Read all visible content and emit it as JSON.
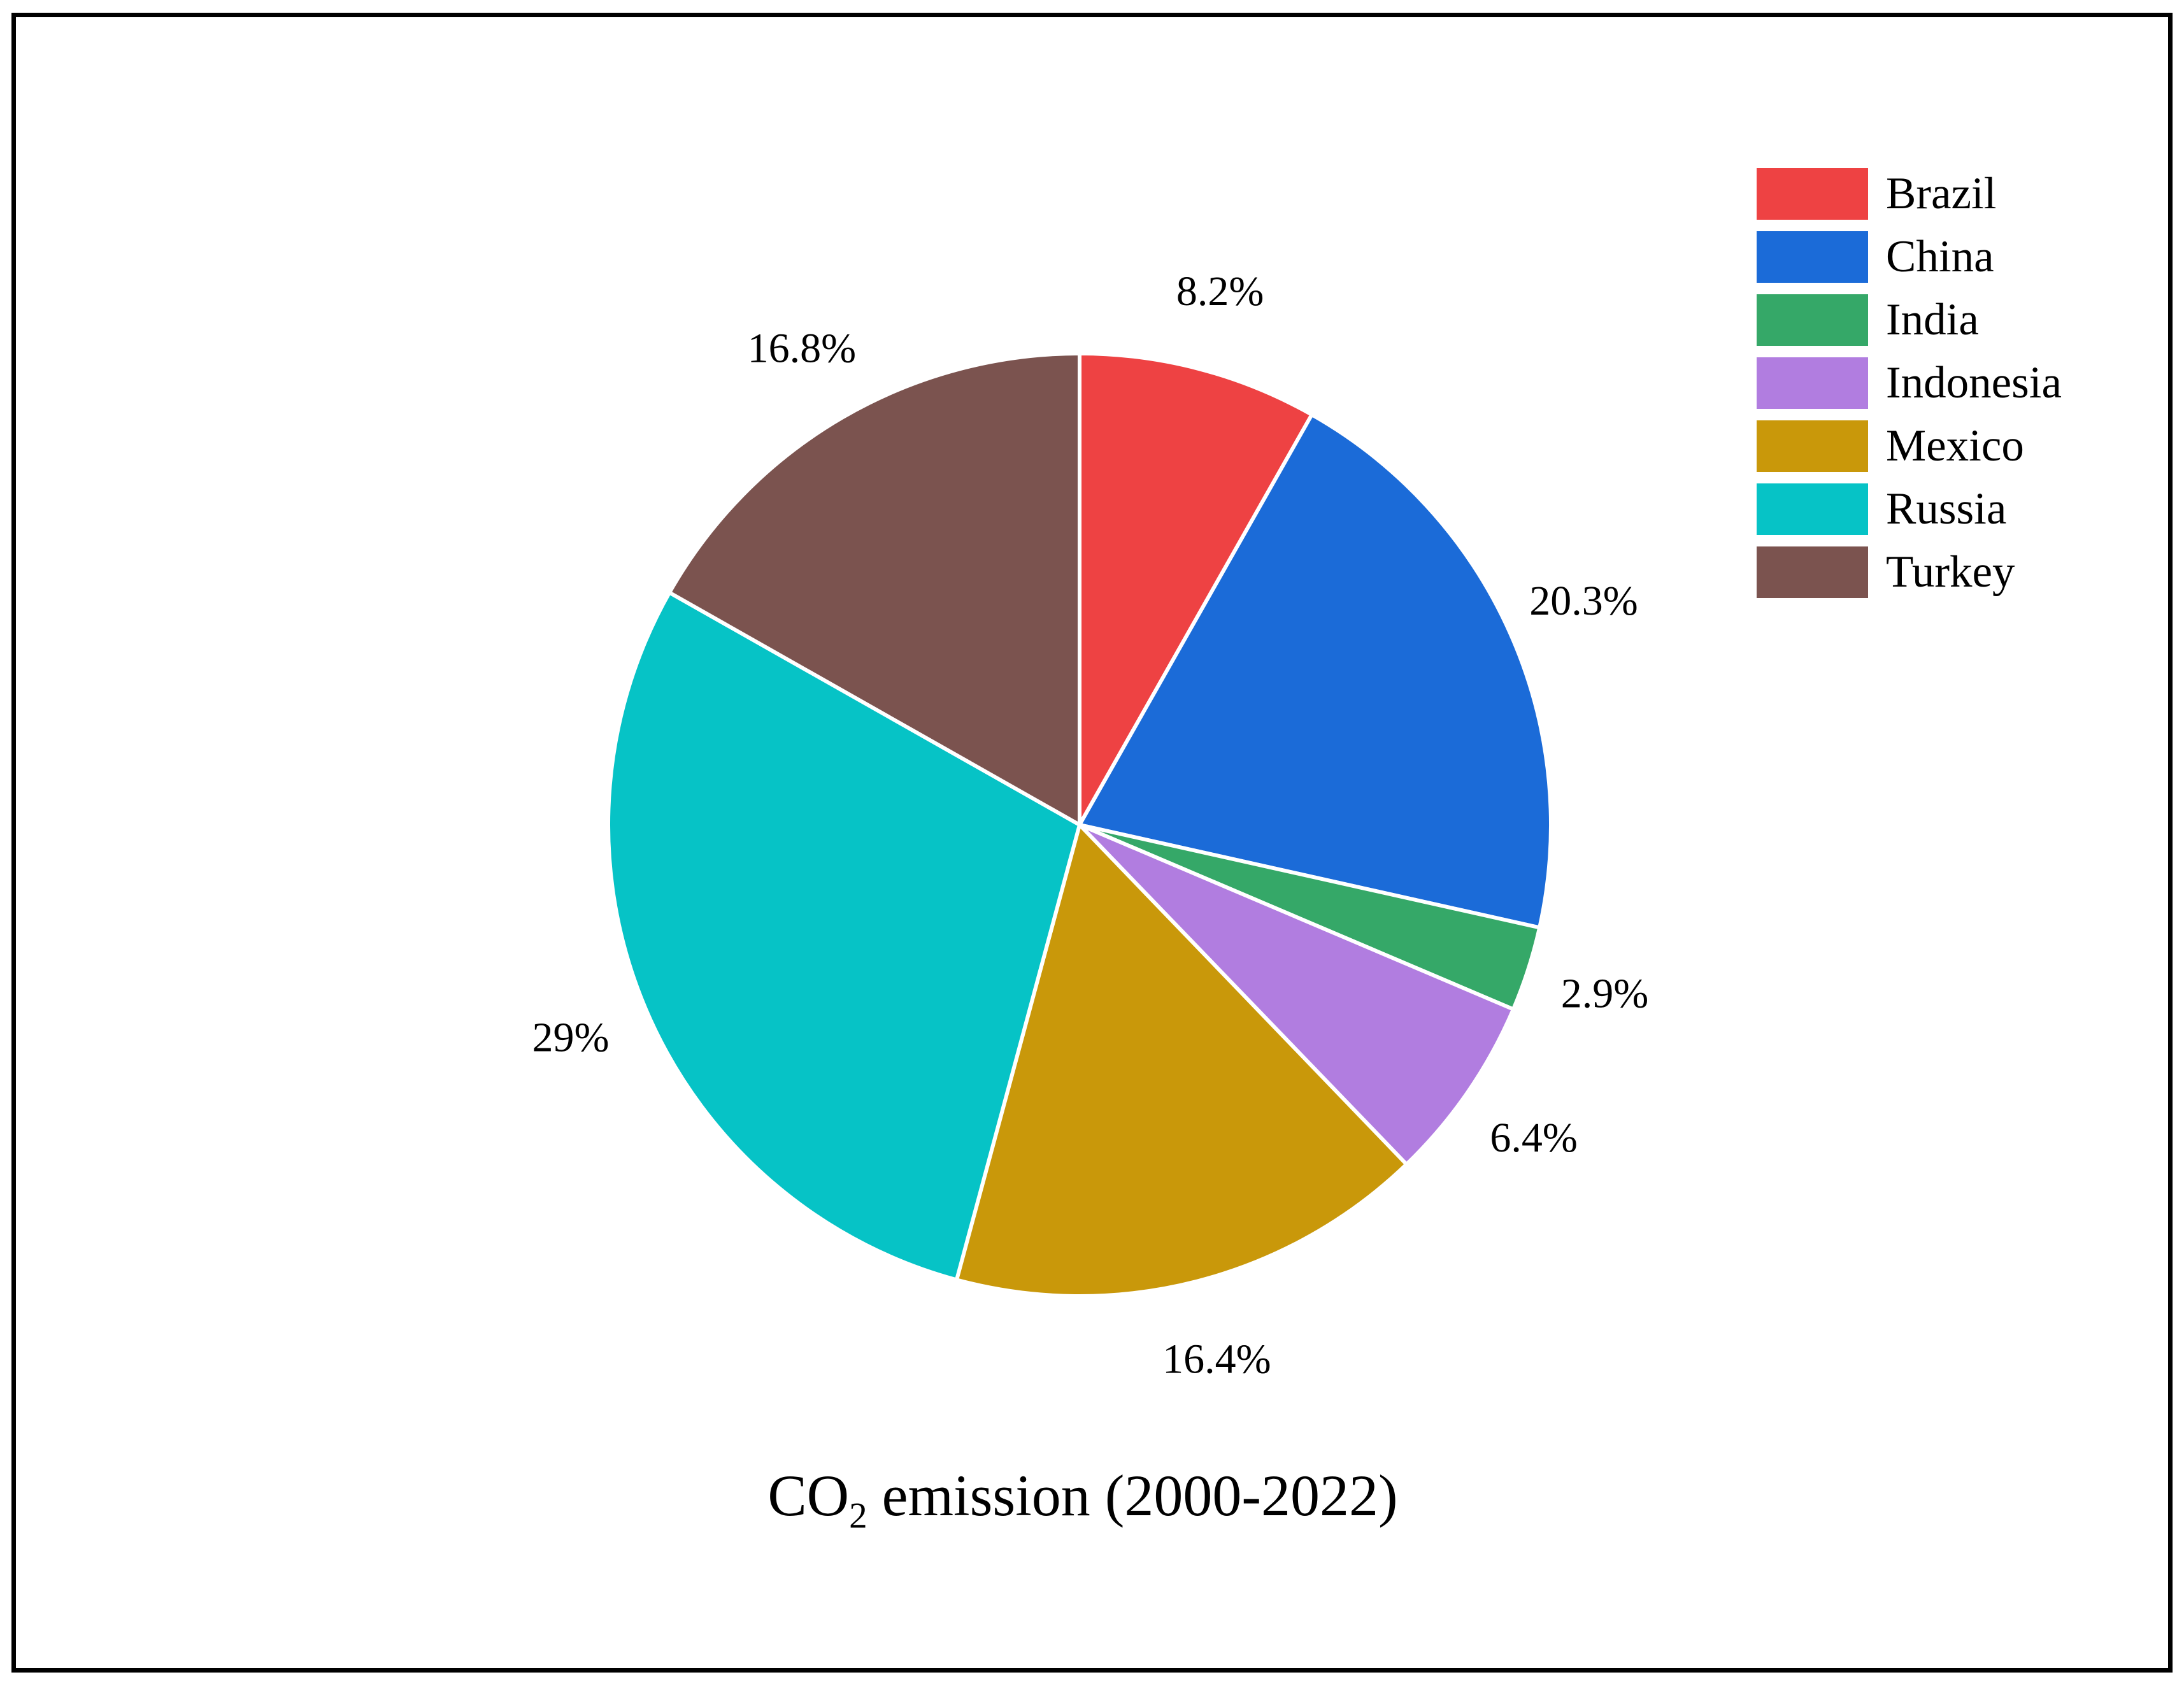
{
  "figure": {
    "background_color": "#ffffff",
    "frame_border_color": "#000000"
  },
  "chart_data": {
    "type": "pie",
    "title": "CO2 emission (2000-2022)",
    "title_prefix": "CO",
    "title_sub": "2",
    "title_suffix": " emission (2000-2022)",
    "categories": [
      "Brazil",
      "China",
      "India",
      "Indonesia",
      "Mexico",
      "Russia",
      "Turkey"
    ],
    "values": [
      8.2,
      20.3,
      2.9,
      6.4,
      16.4,
      29,
      16.8
    ],
    "slice_labels": [
      "8.2%",
      "20.3%",
      "2.9%",
      "6.4%",
      "16.4%",
      "29%",
      "16.8%"
    ],
    "colors": [
      "#EE4243",
      "#1B6BD8",
      "#35A868",
      "#B17DE0",
      "#C9980A",
      "#06C3C6",
      "#7B534F"
    ],
    "start_angle_deg": 90,
    "direction": "clockwise",
    "legend_position": "upper right",
    "slice_edge_color": "#ffffff",
    "label_color": "#000000"
  }
}
